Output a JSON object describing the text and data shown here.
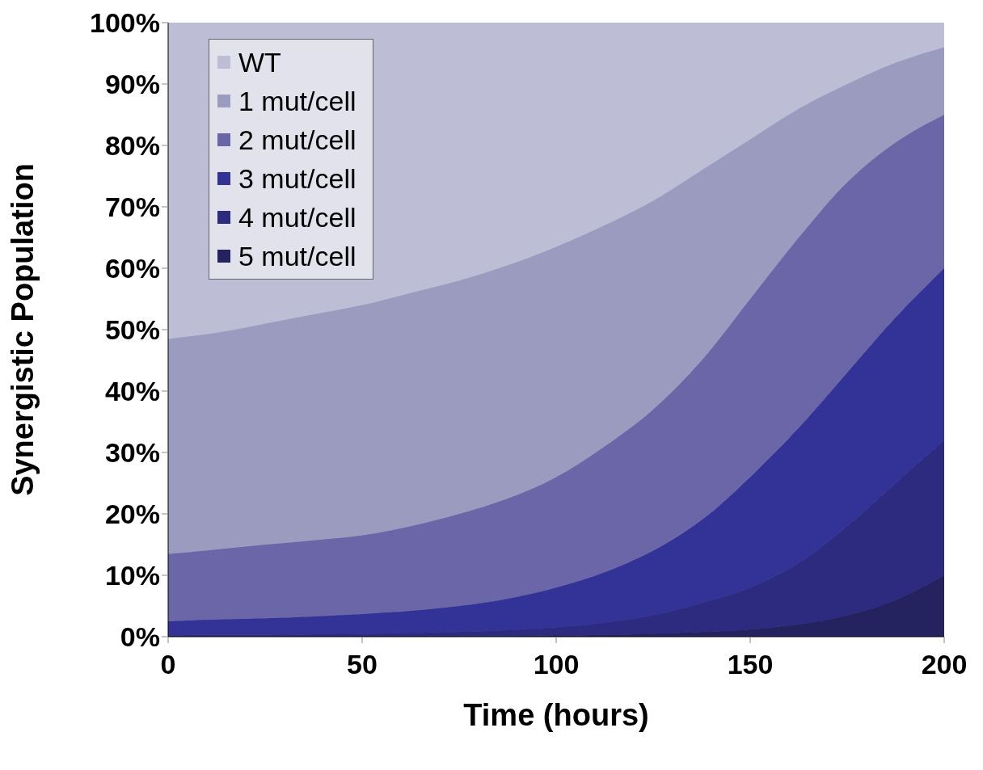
{
  "chart_data": {
    "type": "area",
    "stacked": true,
    "xlabel": "Time (hours)",
    "ylabel": "Synergistic Population",
    "x": [
      0,
      12.5,
      25,
      37.5,
      50,
      62.5,
      75,
      87.5,
      100,
      112.5,
      125,
      137.5,
      150,
      162.5,
      175,
      187.5,
      200
    ],
    "series": [
      {
        "name": "5 mut/cell",
        "color": "#25235f",
        "values": [
          0,
          0,
          0,
          0,
          0,
          0,
          0.1,
          0.1,
          0.2,
          0.3,
          0.5,
          0.8,
          1.2,
          2,
          3.5,
          6,
          10
        ]
      },
      {
        "name": "4 mut/cell",
        "color": "#2d2b80",
        "values": [
          0.2,
          0.3,
          0.3,
          0.4,
          0.5,
          0.6,
          0.7,
          1.0,
          1.3,
          2.0,
          3.0,
          4.7,
          6.8,
          10,
          14.5,
          19,
          22
        ]
      },
      {
        "name": "3 mut/cell",
        "color": "#323297",
        "values": [
          2.3,
          2.5,
          2.7,
          2.9,
          3.2,
          3.6,
          4.2,
          5.1,
          6.5,
          8.2,
          10.5,
          13.5,
          18,
          22,
          25,
          27,
          28
        ]
      },
      {
        "name": "2 mut/cell",
        "color": "#6a66a8",
        "values": [
          11,
          11.4,
          12,
          12.4,
          12.8,
          13.8,
          15,
          16.3,
          18,
          20.5,
          23,
          26,
          29,
          31,
          31,
          28.5,
          25
        ]
      },
      {
        "name": "1 mut/cell",
        "color": "#9b9bbf",
        "values": [
          35,
          35.3,
          36,
          36.8,
          37.5,
          38,
          38,
          38,
          37.5,
          36,
          34,
          31,
          26,
          21,
          16,
          13,
          11
        ]
      },
      {
        "name": "WT",
        "color": "#bdbdd5",
        "values": [
          51.5,
          50.5,
          49,
          47.5,
          46,
          44,
          42,
          39.5,
          36.5,
          33,
          29,
          24,
          19,
          14,
          10,
          6.5,
          4
        ]
      }
    ],
    "xlim": [
      0,
      200
    ],
    "xticks": [
      0,
      50,
      100,
      150,
      200
    ],
    "ylim": [
      0,
      100
    ],
    "yticks": [
      {
        "value": 0,
        "label": "0%"
      },
      {
        "value": 10,
        "label": "10%"
      },
      {
        "value": 20,
        "label": "20%"
      },
      {
        "value": 30,
        "label": "30%"
      },
      {
        "value": 40,
        "label": "40%"
      },
      {
        "value": 50,
        "label": "50%"
      },
      {
        "value": 60,
        "label": "60%"
      },
      {
        "value": 70,
        "label": "70%"
      },
      {
        "value": 80,
        "label": "80%"
      },
      {
        "value": 90,
        "label": "90%"
      },
      {
        "value": 100,
        "label": "100%"
      }
    ],
    "grid": false,
    "legend": "top left"
  }
}
